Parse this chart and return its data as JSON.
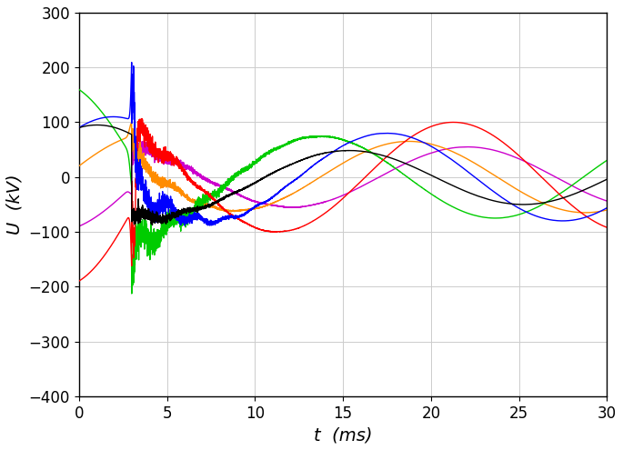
{
  "title": "",
  "xlabel": "t  (ms)",
  "ylabel": "U  (kV)",
  "xlim": [
    0,
    30
  ],
  "ylim": [
    -400,
    300
  ],
  "yticks": [
    -400,
    -300,
    -200,
    -100,
    0,
    100,
    200,
    300
  ],
  "xticks": [
    0,
    5,
    10,
    15,
    20,
    25,
    30
  ],
  "grid": true,
  "colors": {
    "blue": "#0000FF",
    "red": "#FF0000",
    "green": "#00CC00",
    "black": "#000000",
    "orange": "#FF8C00",
    "purple": "#CC00CC"
  },
  "background": "#FFFFFF"
}
